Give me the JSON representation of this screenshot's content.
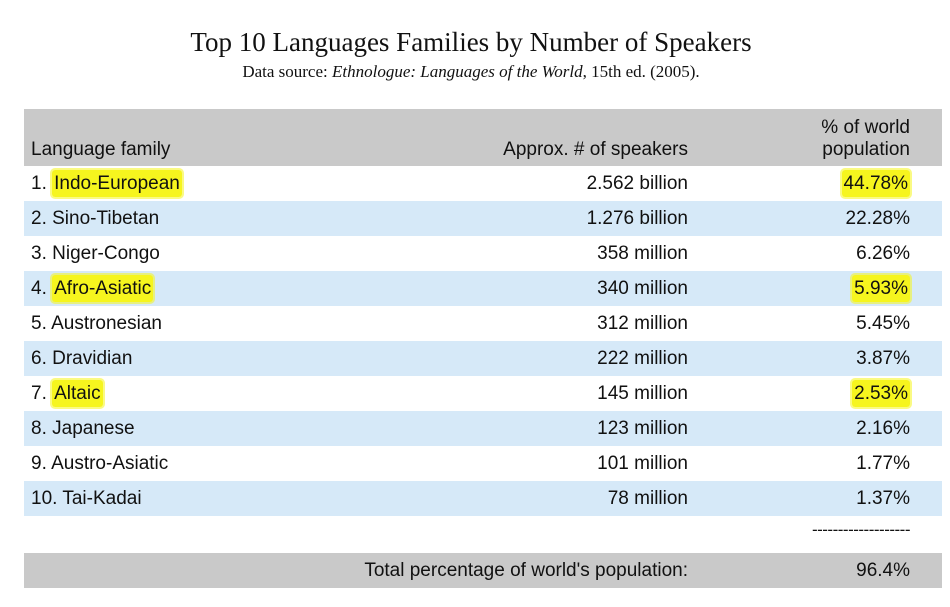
{
  "title": "Top 10 Languages Families by Number of Speakers",
  "source": {
    "prefix": "Data source: ",
    "work": "Ethnologue: Languages of the World",
    "suffix": ", 15th ed. (2005)."
  },
  "header": {
    "family": "Language family",
    "speakers": "Approx. # of speakers",
    "percent_line1": "% of world",
    "percent_line2": "population"
  },
  "rows": [
    {
      "rank": "1. ",
      "family": "Indo-European",
      "speakers": "2.562 billion",
      "percent": "44.78%",
      "highlighted": true
    },
    {
      "rank": "2. ",
      "family": "Sino-Tibetan",
      "speakers": "1.276 billion",
      "percent": "22.28%",
      "highlighted": false
    },
    {
      "rank": "3. ",
      "family": "Niger-Congo",
      "speakers": "358 million",
      "percent": "6.26%",
      "highlighted": false
    },
    {
      "rank": "4. ",
      "family": "Afro-Asiatic",
      "speakers": "340 million",
      "percent": "5.93%",
      "highlighted": true
    },
    {
      "rank": "5. ",
      "family": "Austronesian",
      "speakers": "312 million",
      "percent": "5.45%",
      "highlighted": false
    },
    {
      "rank": "6. ",
      "family": "Dravidian",
      "speakers": "222 million",
      "percent": "3.87%",
      "highlighted": false
    },
    {
      "rank": "7. ",
      "family": "Altaic",
      "speakers": "145 million",
      "percent": "2.53%",
      "highlighted": true
    },
    {
      "rank": "8. ",
      "family": "Japanese",
      "speakers": "123 million",
      "percent": "2.16%",
      "highlighted": false
    },
    {
      "rank": "9. ",
      "family": "Austro-Asiatic",
      "speakers": "101 million",
      "percent": "1.77%",
      "highlighted": false
    },
    {
      "rank": "10. ",
      "family": "Tai-Kadai",
      "speakers": "78 million",
      "percent": "1.37%",
      "highlighted": false
    }
  ],
  "separator": "-------------------",
  "total": {
    "label": "Total percentage of world's population:",
    "value": "96.4%"
  },
  "colors": {
    "header_bg": "#c9c9c9",
    "alt_row_bg": "#d6e9f8",
    "highlight": "#f6f51e"
  }
}
